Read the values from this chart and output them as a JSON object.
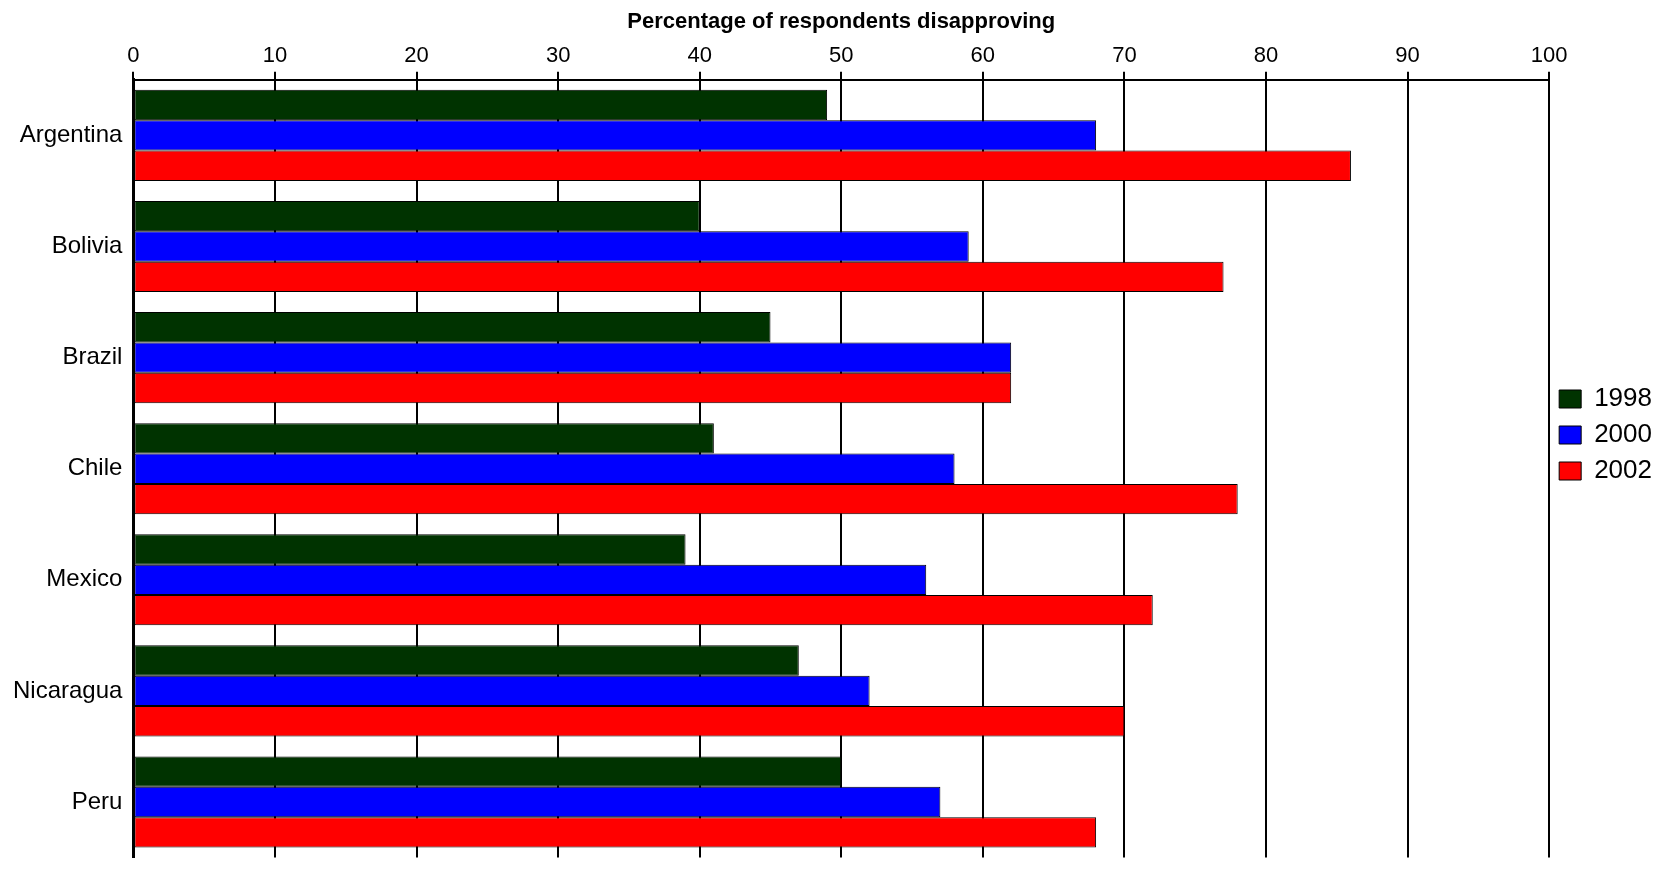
{
  "chart_data": {
    "type": "bar",
    "orientation": "horizontal",
    "xlabel": "Percentage of respondents disapproving",
    "categories": [
      "Argentina",
      "Bolivia",
      "Brazil",
      "Chile",
      "Mexico",
      "Nicaragua",
      "Peru"
    ],
    "series": [
      {
        "name": "1998",
        "color": "#003300",
        "values": [
          49,
          40,
          45,
          41,
          39,
          47,
          50
        ]
      },
      {
        "name": "2000",
        "color": "#0000ff",
        "values": [
          68,
          59,
          62,
          58,
          56,
          52,
          57
        ]
      },
      {
        "name": "2002",
        "color": "#ff0000",
        "values": [
          86,
          77,
          62,
          78,
          72,
          70,
          68
        ]
      }
    ],
    "xlim": [
      0,
      100
    ],
    "xticks": [
      0,
      10,
      20,
      30,
      40,
      50,
      60,
      70,
      80,
      90,
      100
    ],
    "grid": "x",
    "legend": "right"
  }
}
